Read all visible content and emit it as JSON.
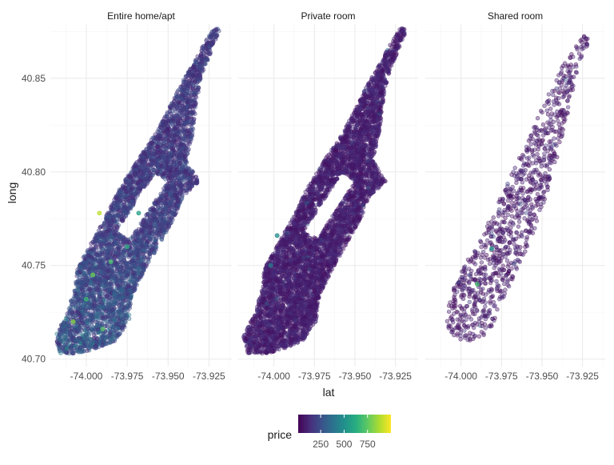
{
  "chart_data": {
    "type": "scatter",
    "facet_labels": [
      "Entire home/apt",
      "Private room",
      "Shared room"
    ],
    "xlabel": "lat",
    "ylabel": "long",
    "x_ticks": [
      -74.0,
      -73.975,
      -73.95,
      -73.925
    ],
    "x_tick_labels": [
      "-74.000",
      "-73.975",
      "-73.950",
      "-73.925"
    ],
    "y_ticks": [
      40.7,
      40.75,
      40.8,
      40.85
    ],
    "y_tick_labels": [
      "40.70",
      "40.75",
      "40.80",
      "40.85"
    ],
    "xlim": [
      -74.022,
      -73.911
    ],
    "ylim": [
      40.696,
      40.879
    ],
    "grid": true,
    "legend": {
      "title": "price",
      "position": "bottom",
      "ticks": [
        250,
        500,
        750
      ],
      "tick_labels": [
        "250",
        "500",
        "750"
      ],
      "range": [
        10,
        1000
      ],
      "colormap": "viridis"
    },
    "point_alpha": 0.4,
    "points_per_panel": [
      5000,
      6000,
      1000
    ],
    "outline": [
      [
        -74.016,
        40.703
      ],
      [
        -74.019,
        40.712
      ],
      [
        -74.012,
        40.724
      ],
      [
        -74.007,
        40.738
      ],
      [
        -74.006,
        40.748
      ],
      [
        -73.995,
        40.765
      ],
      [
        -73.987,
        40.778
      ],
      [
        -73.979,
        40.792
      ],
      [
        -73.969,
        40.806
      ],
      [
        -73.958,
        40.82
      ],
      [
        -73.95,
        40.833
      ],
      [
        -73.942,
        40.847
      ],
      [
        -73.935,
        40.857
      ],
      [
        -73.929,
        40.867
      ],
      [
        -73.922,
        40.877
      ],
      [
        -73.918,
        40.876
      ],
      [
        -73.923,
        40.866
      ],
      [
        -73.93,
        40.85
      ],
      [
        -73.933,
        40.835
      ],
      [
        -73.935,
        40.82
      ],
      [
        -73.939,
        40.806
      ],
      [
        -73.931,
        40.795
      ],
      [
        -73.941,
        40.787
      ],
      [
        -73.946,
        40.776
      ],
      [
        -73.955,
        40.762
      ],
      [
        -73.964,
        40.748
      ],
      [
        -73.972,
        40.734
      ],
      [
        -73.974,
        40.72
      ],
      [
        -73.982,
        40.71
      ],
      [
        -73.993,
        40.706
      ],
      [
        -74.004,
        40.703
      ]
    ],
    "hole": [
      [
        -73.982,
        40.768
      ],
      [
        -73.958,
        40.8
      ],
      [
        -73.95,
        40.795
      ],
      [
        -73.973,
        40.764
      ]
    ],
    "shared_outline": [
      [
        -74.006,
        40.71
      ],
      [
        -74.01,
        40.722
      ],
      [
        -74.004,
        40.74
      ],
      [
        -73.997,
        40.752
      ],
      [
        -73.989,
        40.762
      ],
      [
        -73.982,
        40.776
      ],
      [
        -73.973,
        40.79
      ],
      [
        -73.965,
        40.806
      ],
      [
        -73.957,
        40.82
      ],
      [
        -73.949,
        40.836
      ],
      [
        -73.941,
        40.85
      ],
      [
        -73.934,
        40.862
      ],
      [
        -73.924,
        40.873
      ],
      [
        -73.92,
        40.87
      ],
      [
        -73.928,
        40.856
      ],
      [
        -73.932,
        40.838
      ],
      [
        -73.938,
        40.818
      ],
      [
        -73.942,
        40.802
      ],
      [
        -73.948,
        40.786
      ],
      [
        -73.956,
        40.766
      ],
      [
        -73.965,
        40.748
      ],
      [
        -73.974,
        40.732
      ],
      [
        -73.98,
        40.718
      ],
      [
        -73.988,
        40.71
      ]
    ],
    "highlights": [
      {
        "panel": 0,
        "x": -73.992,
        "y": 40.778,
        "price": 900
      },
      {
        "panel": 0,
        "x": -74.008,
        "y": 40.72,
        "price": 820
      },
      {
        "panel": 0,
        "x": -73.996,
        "y": 40.745,
        "price": 780
      },
      {
        "panel": 0,
        "x": -73.985,
        "y": 40.752,
        "price": 700
      },
      {
        "panel": 0,
        "x": -73.975,
        "y": 40.76,
        "price": 620
      },
      {
        "panel": 0,
        "x": -74.0,
        "y": 40.732,
        "price": 680
      },
      {
        "panel": 0,
        "x": -73.99,
        "y": 40.716,
        "price": 740
      },
      {
        "panel": 0,
        "x": -73.968,
        "y": 40.778,
        "price": 560
      },
      {
        "panel": 1,
        "x": -73.998,
        "y": 40.766,
        "price": 480
      },
      {
        "panel": 1,
        "x": -74.002,
        "y": 40.75,
        "price": 420
      },
      {
        "panel": 2,
        "x": -73.99,
        "y": 40.74,
        "price": 700
      },
      {
        "panel": 2,
        "x": -73.981,
        "y": 40.759,
        "price": 520
      }
    ]
  },
  "colors": {
    "panel_bg": "#ffffff",
    "grid_major": "#ebebeb",
    "grid_minor": "#f5f5f5",
    "text": "#4d4d4d",
    "title_text": "#1a1a1a"
  }
}
